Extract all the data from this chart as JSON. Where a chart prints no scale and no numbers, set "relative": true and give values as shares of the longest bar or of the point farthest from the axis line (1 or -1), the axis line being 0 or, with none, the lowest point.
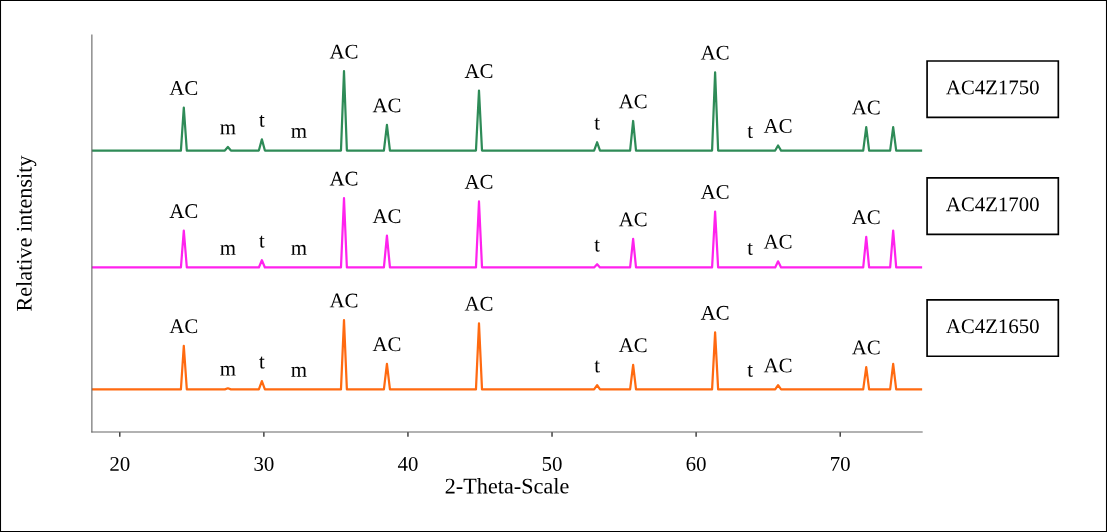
{
  "chart_data": {
    "type": "line",
    "relative": true,
    "xlabel": "2-Theta-Scale",
    "ylabel": "Relative intensity",
    "x": [
      18.06,
      24.24,
      24.44,
      24.65,
      27.29,
      27.5,
      27.71,
      29.65,
      29.86,
      30.07,
      32.43,
      35.35,
      35.56,
      35.76,
      38.33,
      38.54,
      38.75,
      44.72,
      44.93,
      45.14,
      52.92,
      53.13,
      53.33,
      55.42,
      55.63,
      55.83,
      61.11,
      61.32,
      61.53,
      63.75,
      65.49,
      65.69,
      65.9,
      71.6,
      71.81,
      72.01,
      73.47,
      73.68,
      73.89,
      75.69
    ],
    "xlim": [
      18.06,
      75.69
    ],
    "xticks": [
      20,
      30,
      40,
      50,
      60,
      70
    ],
    "grid": false,
    "legend": false,
    "marker": "none",
    "line_style": "solid",
    "series": [
      {
        "name": "AC4Z1750",
        "color": "#2e8b57",
        "values": [
          0.78,
          0.78,
          0.899,
          0.78,
          0.78,
          0.79,
          0.78,
          0.78,
          0.811,
          0.78,
          0.78,
          0.78,
          1.0,
          0.78,
          0.78,
          0.851,
          0.78,
          0.78,
          0.946,
          0.78,
          0.78,
          0.803,
          0.78,
          0.78,
          0.862,
          0.78,
          0.78,
          0.997,
          0.78,
          0.78,
          0.78,
          0.794,
          0.78,
          0.78,
          0.845,
          0.78,
          0.78,
          0.845,
          0.78,
          0.78
        ]
      },
      {
        "name": "AC4Z1700",
        "color": "#ff22ee",
        "values": [
          0.456,
          0.456,
          0.558,
          0.456,
          0.456,
          0.456,
          0.456,
          0.456,
          0.476,
          0.456,
          0.456,
          0.456,
          0.648,
          0.456,
          0.456,
          0.544,
          0.456,
          0.456,
          0.639,
          0.456,
          0.456,
          0.465,
          0.456,
          0.456,
          0.535,
          0.456,
          0.456,
          0.611,
          0.456,
          0.456,
          0.456,
          0.473,
          0.456,
          0.456,
          0.541,
          0.456,
          0.456,
          0.558,
          0.456,
          0.456
        ]
      },
      {
        "name": "AC4Z1650",
        "color": "#ff6a10",
        "values": [
          0.118,
          0.118,
          0.239,
          0.118,
          0.118,
          0.121,
          0.118,
          0.118,
          0.141,
          0.118,
          0.118,
          0.118,
          0.31,
          0.118,
          0.118,
          0.189,
          0.118,
          0.118,
          0.301,
          0.118,
          0.118,
          0.13,
          0.118,
          0.118,
          0.186,
          0.118,
          0.118,
          0.276,
          0.118,
          0.118,
          0.118,
          0.13,
          0.118,
          0.118,
          0.18,
          0.118,
          0.118,
          0.189,
          0.118,
          0.118
        ]
      }
    ],
    "annotations": [
      {
        "text": "AC",
        "x": 24.44,
        "y": 0.899
      },
      {
        "text": "m",
        "x": 27.5,
        "y": 0.79
      },
      {
        "text": "t",
        "x": 29.86,
        "y": 0.811
      },
      {
        "text": "m",
        "x": 32.43,
        "y": 0.78
      },
      {
        "text": "AC",
        "x": 35.56,
        "y": 1.0
      },
      {
        "text": "AC",
        "x": 38.54,
        "y": 0.851
      },
      {
        "text": "AC",
        "x": 44.93,
        "y": 0.946
      },
      {
        "text": "t",
        "x": 53.13,
        "y": 0.803
      },
      {
        "text": "AC",
        "x": 55.63,
        "y": 0.862
      },
      {
        "text": "AC",
        "x": 61.32,
        "y": 0.997
      },
      {
        "text": "t",
        "x": 63.75,
        "y": 0.78
      },
      {
        "text": "AC",
        "x": 65.69,
        "y": 0.794
      },
      {
        "text": "AC",
        "x": 71.81,
        "y": 0.845
      },
      {
        "text": "AC",
        "x": 24.44,
        "y": 0.558
      },
      {
        "text": "m",
        "x": 27.5,
        "y": 0.456
      },
      {
        "text": "t",
        "x": 29.86,
        "y": 0.476
      },
      {
        "text": "m",
        "x": 32.43,
        "y": 0.456
      },
      {
        "text": "AC",
        "x": 35.56,
        "y": 0.648
      },
      {
        "text": "AC",
        "x": 38.54,
        "y": 0.544
      },
      {
        "text": "AC",
        "x": 44.93,
        "y": 0.639
      },
      {
        "text": "t",
        "x": 53.13,
        "y": 0.465
      },
      {
        "text": "AC",
        "x": 55.63,
        "y": 0.535
      },
      {
        "text": "AC",
        "x": 61.32,
        "y": 0.611
      },
      {
        "text": "t",
        "x": 63.75,
        "y": 0.456
      },
      {
        "text": "AC",
        "x": 65.69,
        "y": 0.473
      },
      {
        "text": "AC",
        "x": 71.81,
        "y": 0.541
      },
      {
        "text": "AC",
        "x": 24.44,
        "y": 0.239
      },
      {
        "text": "m",
        "x": 27.5,
        "y": 0.121
      },
      {
        "text": "t",
        "x": 29.86,
        "y": 0.141
      },
      {
        "text": "m",
        "x": 32.43,
        "y": 0.118
      },
      {
        "text": "AC",
        "x": 35.56,
        "y": 0.31
      },
      {
        "text": "AC",
        "x": 38.54,
        "y": 0.189
      },
      {
        "text": "AC",
        "x": 44.93,
        "y": 0.301
      },
      {
        "text": "t",
        "x": 53.13,
        "y": 0.13
      },
      {
        "text": "AC",
        "x": 55.63,
        "y": 0.186
      },
      {
        "text": "AC",
        "x": 61.32,
        "y": 0.276
      },
      {
        "text": "t",
        "x": 63.75,
        "y": 0.118
      },
      {
        "text": "AC",
        "x": 65.69,
        "y": 0.13
      },
      {
        "text": "AC",
        "x": 71.81,
        "y": 0.18
      }
    ]
  }
}
